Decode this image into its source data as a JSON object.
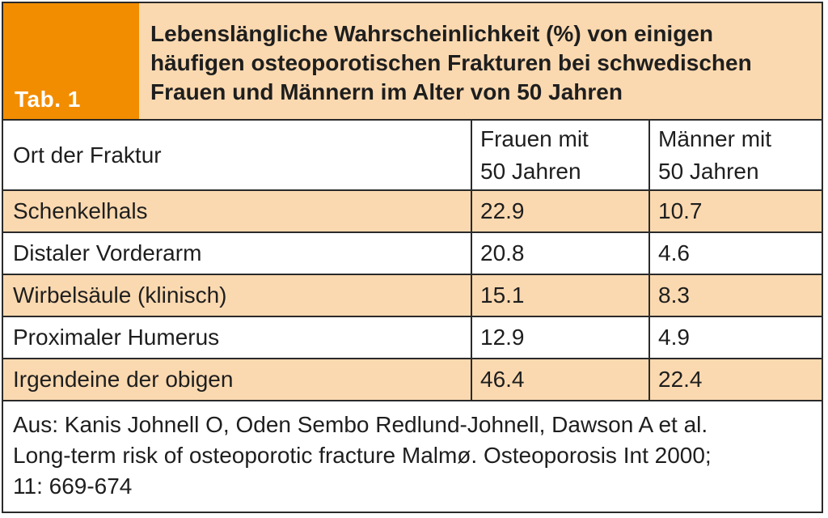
{
  "table": {
    "tab_label": "Tab. 1",
    "title_lines": [
      "Lebenslängliche Wahrscheinlichkeit (%) von einigen",
      "häufigen osteoporotischen Frakturen bei schwedischen",
      "Frauen und Männern im Alter von 50 Jahren"
    ],
    "columns": {
      "col1": [
        "Ort der Fraktur"
      ],
      "col2": [
        "Frauen mit",
        "50 Jahren"
      ],
      "col3": [
        "Männer mit",
        "50 Jahren"
      ]
    },
    "rows": [
      {
        "site": "Schenkelhals",
        "women": "22.9",
        "men": "10.7"
      },
      {
        "site": "Distaler Vorderarm",
        "women": "20.8",
        "men": "4.6"
      },
      {
        "site": "Wirbelsäule (klinisch)",
        "women": "15.1",
        "men": "8.3"
      },
      {
        "site": "Proximaler Humerus",
        "women": "12.9",
        "men": "4.9"
      },
      {
        "site": "Irgendeine der obigen",
        "women": "46.4",
        "men": "22.4"
      }
    ],
    "source_lines": [
      "Aus: Kanis Johnell O, Oden Sembo Redlund-Johnell, Dawson A et al.",
      "Long-term risk of osteoporotic fracture Malmø. Osteoporosis Int 2000;",
      "11: 669-674"
    ]
  },
  "colors": {
    "accent_orange": "#f28d00",
    "row_shade": "#fbd9b0",
    "border": "#2a2a2a"
  }
}
